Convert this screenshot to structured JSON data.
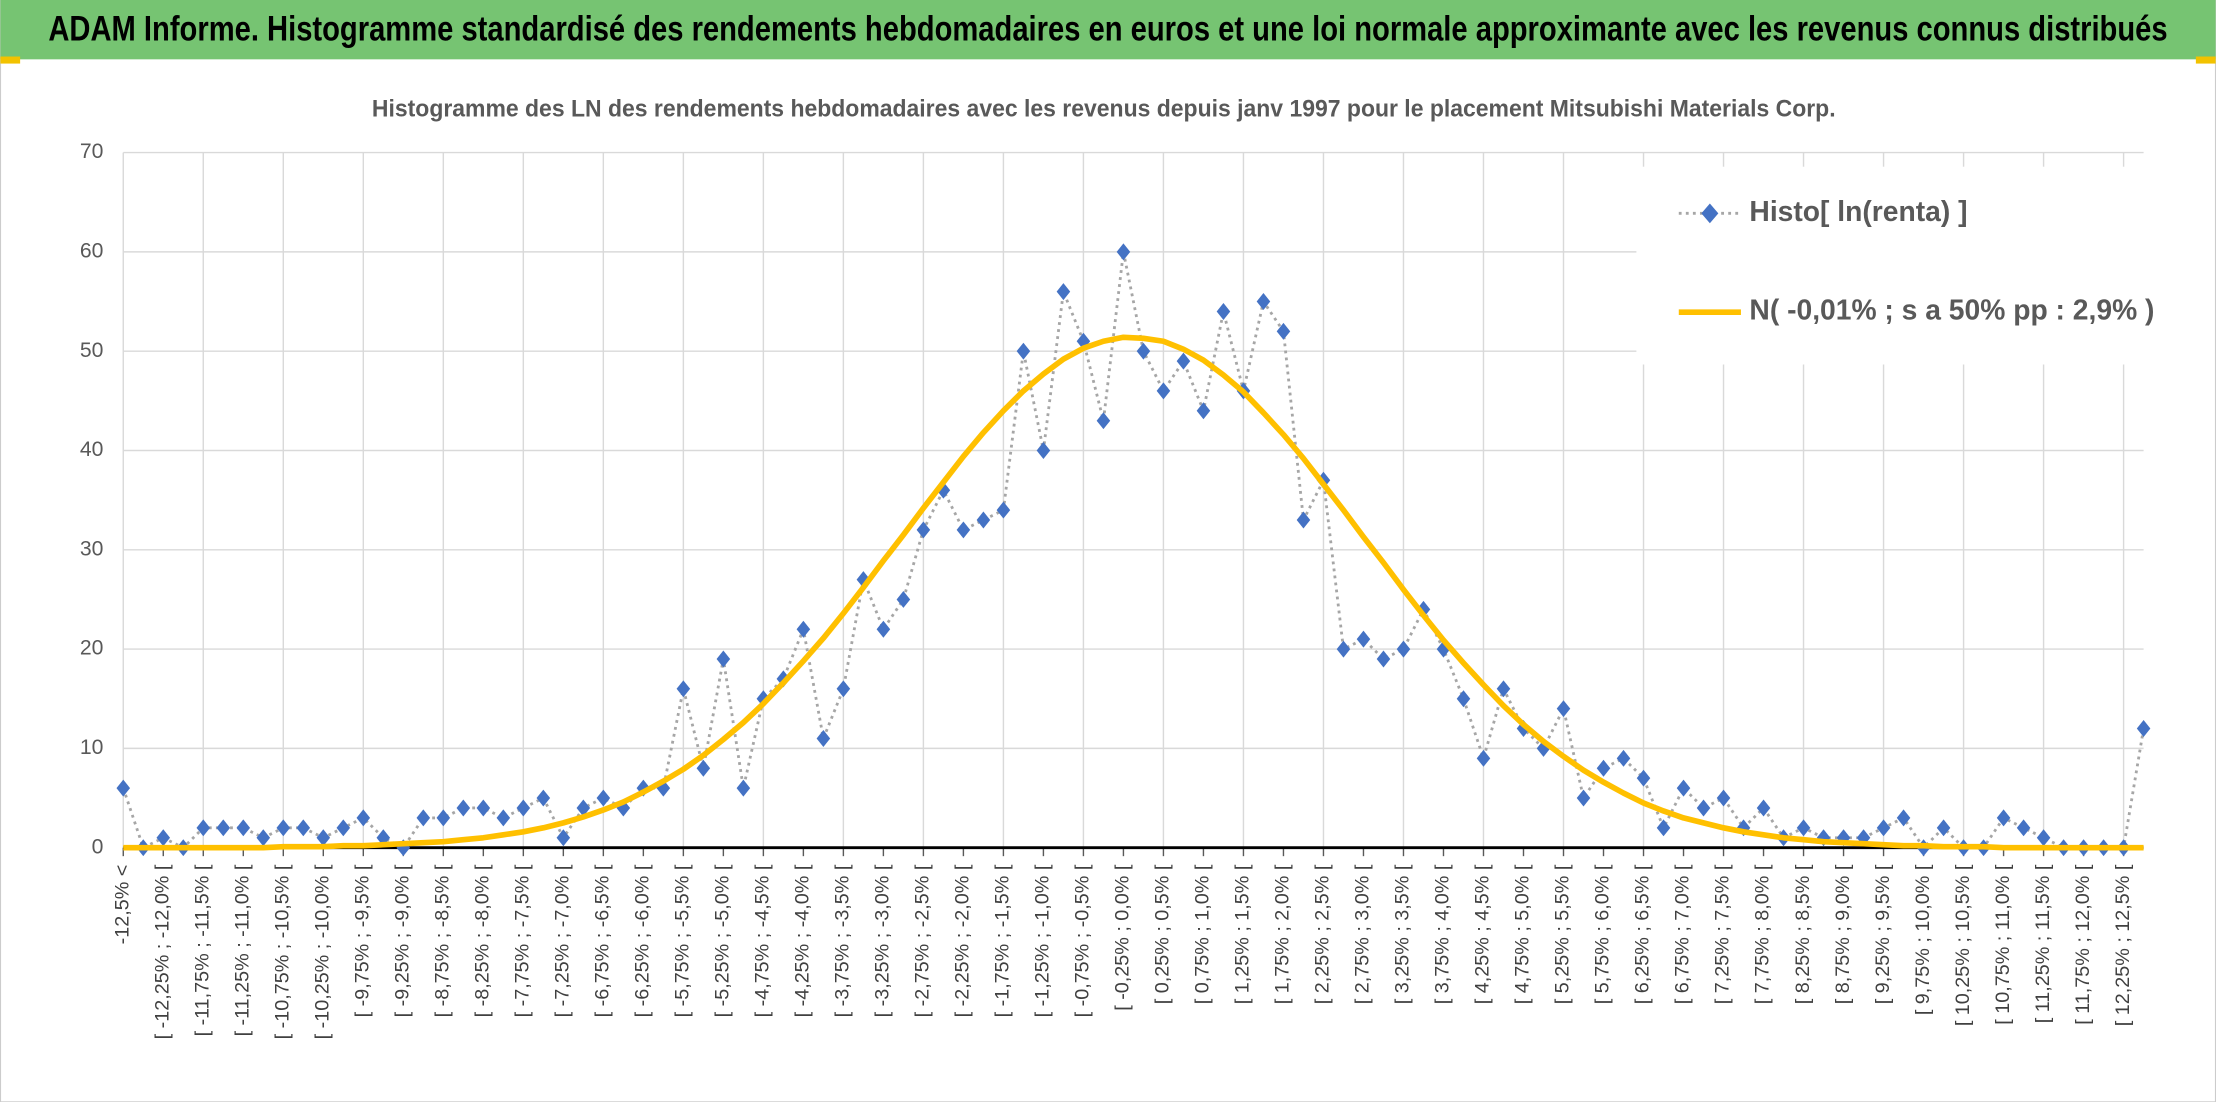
{
  "header": {
    "title": "ADAM Informe. Histogramme standardisé des rendements hebdomadaires en euros et une loi normale approximante avec les revenus connus distribués"
  },
  "chart_data": {
    "type": "line",
    "title": "Histogramme des LN des rendements hebdomadaires avec les revenus depuis janv 1997 pour le placement Mitsubishi Materials Corp.",
    "categories": [
      "-12,5% <",
      null,
      "[ -12,25% ; -12,0% [",
      null,
      "[ -11,75% ; -11,5% [",
      null,
      "[ -11,25% ; -11,0% [",
      null,
      "[ -10,75% ; -10,5% [",
      null,
      "[ -10,25% ; -10,0% [",
      null,
      "[ -9,75% ; -9,5% [",
      null,
      "[ -9,25% ; -9,0% [",
      null,
      "[ -8,75% ; -8,5% [",
      null,
      "[ -8,25% ; -8,0% [",
      null,
      "[ -7,75% ; -7,5% [",
      null,
      "[ -7,25% ; -7,0% [",
      null,
      "[ -6,75% ; -6,5% [",
      null,
      "[ -6,25% ; -6,0% [",
      null,
      "[ -5,75% ; -5,5% [",
      null,
      "[ -5,25% ; -5,0% [",
      null,
      "[ -4,75% ; -4,5% [",
      null,
      "[ -4,25% ; -4,0% [",
      null,
      "[ -3,75% ; -3,5% [",
      null,
      "[ -3,25% ; -3,0% [",
      null,
      "[ -2,75% ; -2,5% [",
      null,
      "[ -2,25% ; -2,0% [",
      null,
      "[ -1,75% ; -1,5% [",
      null,
      "[ -1,25% ; -1,0% [",
      null,
      "[ -0,75% ; -0,5% [",
      null,
      "[ -0,25% ; 0,0% [",
      null,
      "[ 0,25% ; 0,5% [",
      null,
      "[ 0,75% ; 1,0% [",
      null,
      "[ 1,25% ; 1,5% [",
      null,
      "[ 1,75% ; 2,0% [",
      null,
      "[ 2,25% ; 2,5% [",
      null,
      "[ 2,75% ; 3,0% [",
      null,
      "[ 3,25% ; 3,5% [",
      null,
      "[ 3,75% ; 4,0% [",
      null,
      "[ 4,25% ; 4,5% [",
      null,
      "[ 4,75% ; 5,0% [",
      null,
      "[ 5,25% ; 5,5% [",
      null,
      "[ 5,75% ; 6,0% [",
      null,
      "[ 6,25% ; 6,5% [",
      null,
      "[ 6,75% ; 7,0% [",
      null,
      "[ 7,25% ; 7,5% [",
      null,
      "[ 7,75% ; 8,0% [",
      null,
      "[ 8,25% ; 8,5% [",
      null,
      "[ 8,75% ; 9,0% [",
      null,
      "[ 9,25% ; 9,5% [",
      null,
      "[ 9,75% ; 10,0% [",
      null,
      "[ 10,25% ; 10,5% [",
      null,
      "[ 10,75% ; 11,0% [",
      null,
      "[ 11,25% ; 11,5% [",
      null,
      "[ 11,75% ; 12,0% [",
      null,
      "[ 12,25% ; 12,5% [",
      null
    ],
    "series": [
      {
        "name": "Histo[ ln(renta) ]",
        "color": "#4472c4",
        "values": [
          6,
          0,
          1,
          0,
          2,
          2,
          2,
          1,
          2,
          2,
          1,
          2,
          3,
          1,
          0,
          3,
          3,
          4,
          4,
          3,
          4,
          5,
          1,
          4,
          5,
          4,
          6,
          6,
          16,
          8,
          19,
          6,
          15,
          17,
          22,
          11,
          16,
          27,
          22,
          25,
          32,
          36,
          32,
          33,
          34,
          50,
          40,
          56,
          51,
          43,
          60,
          50,
          46,
          49,
          44,
          54,
          46,
          55,
          52,
          33,
          37,
          20,
          21,
          19,
          20,
          24,
          20,
          15,
          9,
          16,
          12,
          10,
          14,
          5,
          8,
          9,
          7,
          2,
          6,
          4,
          5,
          2,
          4,
          1,
          2,
          1,
          1,
          1,
          2,
          3,
          0,
          2,
          0,
          0,
          3,
          2,
          1,
          0,
          0,
          0,
          0,
          12
        ]
      },
      {
        "name": "N( -0,01% ; s a 50% pp : 2,9% )",
        "color": "#ffc000",
        "values": [
          0,
          0,
          0,
          0,
          0,
          0,
          0,
          0,
          0.1,
          0.1,
          0.1,
          0.2,
          0.2,
          0.3,
          0.4,
          0.5,
          0.6,
          0.8,
          1.0,
          1.3,
          1.6,
          2.0,
          2.5,
          3.1,
          3.8,
          4.6,
          5.6,
          6.7,
          7.9,
          9.3,
          10.9,
          12.6,
          14.5,
          16.6,
          18.8,
          21.1,
          23.6,
          26.2,
          28.9,
          31.5,
          34.2,
          36.8,
          39.4,
          41.8,
          44.0,
          46.0,
          47.7,
          49.2,
          50.3,
          51.0,
          51.4,
          51.3,
          51.0,
          50.2,
          49.1,
          47.6,
          45.9,
          43.8,
          41.6,
          39.2,
          36.6,
          34.0,
          31.3,
          28.7,
          26.0,
          23.4,
          20.9,
          18.6,
          16.4,
          14.3,
          12.4,
          10.7,
          9.2,
          7.8,
          6.6,
          5.5,
          4.5,
          3.7,
          3.0,
          2.5,
          2.0,
          1.6,
          1.3,
          1.0,
          0.8,
          0.6,
          0.5,
          0.4,
          0.3,
          0.2,
          0.2,
          0.1,
          0.1,
          0.1,
          0,
          0,
          0,
          0,
          0,
          0,
          0,
          0
        ]
      }
    ],
    "ylim": [
      0,
      70
    ],
    "yticks": [
      0,
      10,
      20,
      30,
      40,
      50,
      60,
      70
    ],
    "grid": true,
    "legend": "upper right"
  }
}
